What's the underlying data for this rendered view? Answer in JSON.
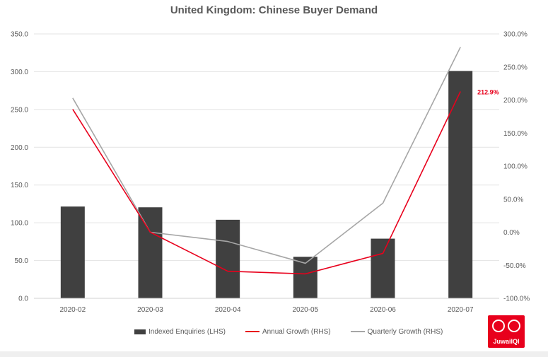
{
  "chart_data": {
    "type": "bar",
    "title": "United Kingdom: Chinese Buyer Demand",
    "categories": [
      "2020-02",
      "2020-03",
      "2020-04",
      "2020-05",
      "2020-06",
      "2020-07"
    ],
    "series": [
      {
        "name": "Indexed Enquiries (LHS)",
        "type": "bar",
        "axis": "left",
        "color": "#404040",
        "values": [
          121.5,
          120.5,
          104,
          55,
          79,
          301
        ]
      },
      {
        "name": "Annual Growth (RHS)",
        "type": "line",
        "axis": "right",
        "color": "#e8001c",
        "values": [
          186,
          0,
          -59,
          -63,
          -32,
          212.9
        ]
      },
      {
        "name": "Quarterly Growth (RHS)",
        "type": "line",
        "axis": "right",
        "color": "#a6a6a6",
        "values": [
          203,
          0,
          -14,
          -47,
          44,
          280
        ]
      }
    ],
    "y_left": {
      "min": 0,
      "max": 350,
      "step": 50,
      "tick_labels": [
        "0.0",
        "50.0",
        "100.0",
        "150.0",
        "200.0",
        "250.0",
        "300.0",
        "350.0"
      ]
    },
    "y_right": {
      "min": -100,
      "max": 300,
      "step": 50,
      "tick_labels": [
        "-100.0%",
        "-50.0%",
        "0.0%",
        "50.0%",
        "100.0%",
        "150.0%",
        "200.0%",
        "250.0%",
        "300.0%"
      ]
    },
    "annotation": {
      "series_index": 1,
      "point_index": 5,
      "label": "212.9%",
      "color": "#e8001c"
    },
    "grid": true,
    "legend_position": "bottom"
  },
  "logo": {
    "name": "JuwaiIQI",
    "color": "#e8001c"
  }
}
